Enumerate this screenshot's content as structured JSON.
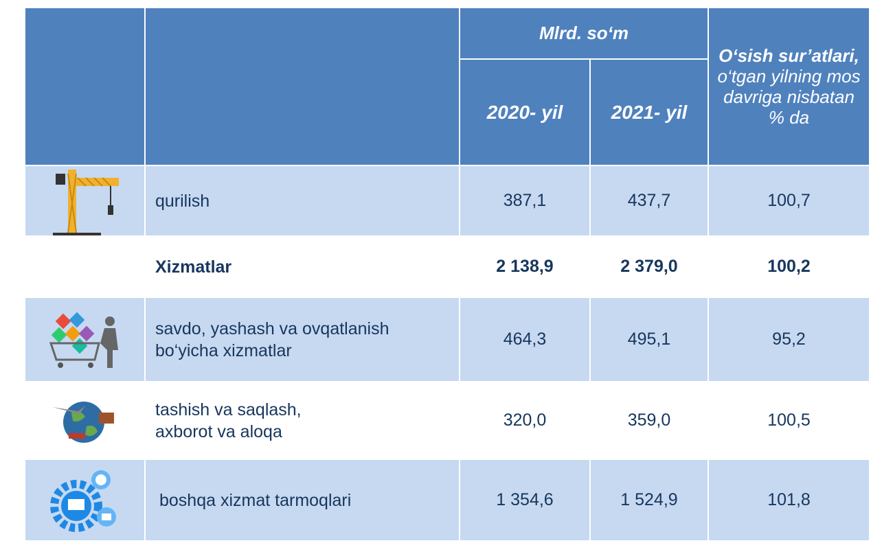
{
  "header": {
    "unit": "Mlrd. so‘m",
    "years": [
      "2020- yil",
      "2021- yil"
    ],
    "growth_title": "O‘sish sur’atlari,",
    "growth_subtitle": "o‘tgan yilning mos davriga nisbatan % da"
  },
  "table": {
    "rows": [
      [
        "qurilish",
        "387,1",
        "437,7",
        "100,7"
      ],
      [
        "Xizmatlar",
        "2 138,9",
        "2 379,0",
        "100,2"
      ],
      [
        "savdo, yashash va ovqatlanish bo‘yicha xizmatlar",
        "464,3",
        "495,1",
        "95,2"
      ],
      [
        "tashish va saqlash, axborot va aloqa",
        "320,0",
        "359,0",
        "100,5"
      ],
      [
        "boshqa xizmat tarmoqlari",
        "1 354,6",
        "1 524,9",
        "101,8"
      ]
    ]
  }
}
